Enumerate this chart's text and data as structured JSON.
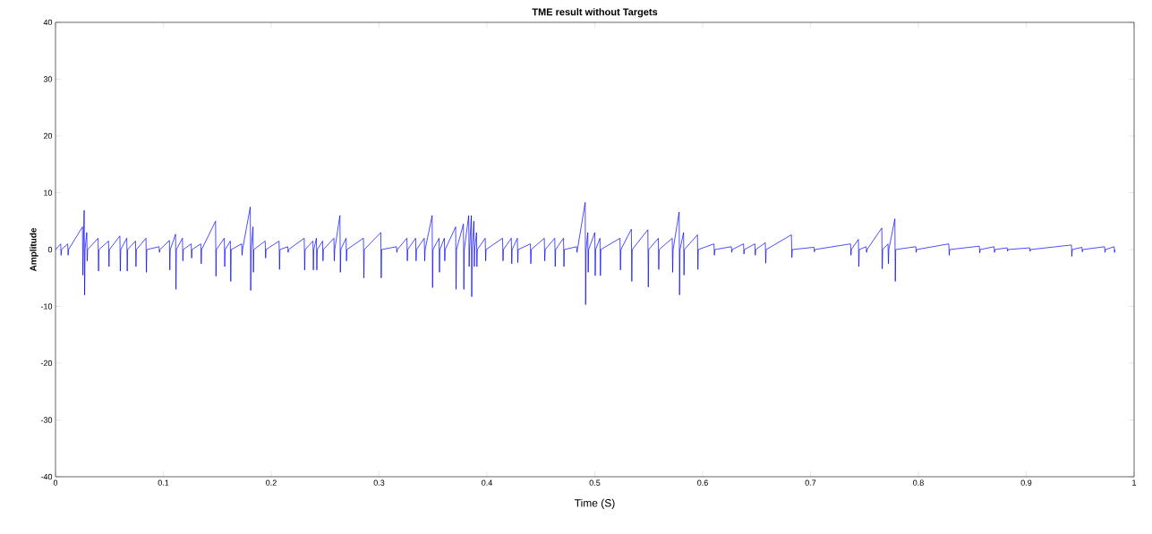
{
  "chart_data": {
    "type": "line",
    "title": "TME result without Targets",
    "xlabel": "Time (S)",
    "ylabel": "Amplitude",
    "xlim": [
      0,
      1
    ],
    "ylim": [
      -40,
      40
    ],
    "xticks": [
      0,
      0.1,
      0.2,
      0.3,
      0.4,
      0.5,
      0.6,
      0.7,
      0.8,
      0.9,
      1
    ],
    "yticks": [
      -40,
      -30,
      -20,
      -10,
      0,
      10,
      20,
      30,
      40
    ],
    "series": [
      {
        "color": "#0000ff",
        "x": [
          0,
          0.0048,
          0.0052,
          0.0056,
          0.0113,
          0.0117,
          0.0121,
          0.025,
          0.0254,
          0.0258,
          0.0266,
          0.027,
          0.0274,
          0.029,
          0.0294,
          0.0298,
          0.0395,
          0.0399,
          0.0403,
          0.0492,
          0.0496,
          0.05,
          0.0597,
          0.0601,
          0.0605,
          0.0661,
          0.0665,
          0.0669,
          0.0742,
          0.0746,
          0.075,
          0.0839,
          0.0843,
          0.0847,
          0.096,
          0.0964,
          0.0968,
          0.1056,
          0.106,
          0.1064,
          0.1113,
          0.1117,
          0.1121,
          0.1177,
          0.1181,
          0.1185,
          0.1258,
          0.1262,
          0.1266,
          0.1347,
          0.1351,
          0.1355,
          0.1484,
          0.1488,
          0.1492,
          0.1565,
          0.1569,
          0.1573,
          0.1621,
          0.1625,
          0.1629,
          0.1726,
          0.173,
          0.1734,
          0.1806,
          0.181,
          0.1814,
          0.1831,
          0.1835,
          0.1839,
          0.1944,
          0.1948,
          0.1952,
          0.2073,
          0.2077,
          0.2081,
          0.2153,
          0.2157,
          0.2161,
          0.2306,
          0.231,
          0.2314,
          0.2387,
          0.2391,
          0.2395,
          0.2419,
          0.2423,
          0.2427,
          0.2476,
          0.248,
          0.2484,
          0.2581,
          0.2585,
          0.2589,
          0.2637,
          0.2641,
          0.2645,
          0.2694,
          0.2698,
          0.2702,
          0.2855,
          0.2859,
          0.2863,
          0.3016,
          0.302,
          0.3024,
          0.3161,
          0.3165,
          0.3169,
          0.3258,
          0.3262,
          0.3266,
          0.3339,
          0.3343,
          0.3347,
          0.3419,
          0.3423,
          0.3427,
          0.3492,
          0.3496,
          0.35,
          0.3556,
          0.356,
          0.3564,
          0.3605,
          0.3609,
          0.3613,
          0.371,
          0.3714,
          0.3718,
          0.3782,
          0.3786,
          0.379,
          0.3831,
          0.3835,
          0.3839,
          0.3855,
          0.3859,
          0.3863,
          0.3879,
          0.3883,
          0.3887,
          0.3903,
          0.3907,
          0.3911,
          0.3984,
          0.3988,
          0.3992,
          0.4145,
          0.4149,
          0.4153,
          0.4226,
          0.423,
          0.4234,
          0.4282,
          0.4286,
          0.429,
          0.4403,
          0.4407,
          0.4411,
          0.4532,
          0.4536,
          0.454,
          0.4629,
          0.4633,
          0.4637,
          0.471,
          0.4714,
          0.4718,
          0.4831,
          0.4835,
          0.4839,
          0.4911,
          0.4915,
          0.4919,
          0.4935,
          0.4939,
          0.4943,
          0.5,
          0.5004,
          0.5008,
          0.5048,
          0.5052,
          0.5056,
          0.5234,
          0.5238,
          0.5242,
          0.5339,
          0.5343,
          0.5347,
          0.5492,
          0.5496,
          0.55,
          0.5589,
          0.5593,
          0.5597,
          0.5718,
          0.5722,
          0.5726,
          0.5782,
          0.5786,
          0.579,
          0.5823,
          0.5827,
          0.5831,
          0.5952,
          0.5956,
          0.596,
          0.6105,
          0.6109,
          0.6113,
          0.6266,
          0.627,
          0.6274,
          0.6379,
          0.6383,
          0.6387,
          0.6484,
          0.6488,
          0.6492,
          0.6581,
          0.6585,
          0.6589,
          0.6823,
          0.6827,
          0.6831,
          0.7032,
          0.7036,
          0.704,
          0.7371,
          0.7375,
          0.7379,
          0.7444,
          0.7448,
          0.7452,
          0.7516,
          0.752,
          0.7524,
          0.7661,
          0.7665,
          0.7669,
          0.7718,
          0.7722,
          0.7726,
          0.7782,
          0.7786,
          0.779,
          0.7976,
          0.798,
          0.7984,
          0.8282,
          0.8286,
          0.829,
          0.8565,
          0.8569,
          0.8573,
          0.8702,
          0.8706,
          0.871,
          0.8823,
          0.8827,
          0.8831,
          0.9032,
          0.9036,
          0.904,
          0.9419,
          0.9423,
          0.9427,
          0.9516,
          0.952,
          0.9524,
          0.9726,
          0.973,
          0.9734,
          0.9815,
          0.9819,
          0.9823
        ],
        "values": [
          0,
          1,
          -1,
          0,
          1,
          -1,
          0,
          4,
          -4.5,
          0,
          6.9,
          -8,
          0,
          3,
          -2,
          0,
          2,
          -3.8,
          0,
          1.5,
          -3,
          0,
          2.4,
          -3.8,
          0,
          2,
          -3.8,
          0,
          1.5,
          -3,
          0,
          2,
          -4,
          0,
          0.5,
          -0.5,
          0,
          1.6,
          -3.6,
          0,
          2.7,
          -7,
          0,
          2,
          -2,
          0,
          1,
          -1.5,
          0,
          1,
          -2.5,
          0,
          5,
          -4.7,
          0,
          2,
          -3,
          0,
          1.5,
          -5.6,
          0,
          1,
          -1,
          0,
          7.5,
          -7.2,
          0,
          4,
          -4,
          0,
          1.5,
          -1.5,
          0,
          1.5,
          -3.5,
          0,
          0.5,
          -0.5,
          0,
          2,
          -3.6,
          0,
          1.5,
          -3.6,
          0,
          2,
          -3.6,
          0,
          1.5,
          -2,
          0,
          2,
          -2,
          0,
          6,
          -4,
          0,
          2,
          -2,
          0,
          2,
          -5,
          0,
          3,
          -5,
          0,
          0.5,
          -0.5,
          0,
          2,
          -2,
          0,
          2,
          -2,
          0,
          2,
          -2,
          0,
          6,
          -6.7,
          0,
          2,
          -4,
          0,
          2,
          -2,
          0,
          4,
          -7,
          0,
          4.5,
          -7,
          0,
          6,
          -3,
          0,
          6,
          -8.3,
          0,
          5,
          -3,
          0,
          3,
          -3,
          0,
          2,
          -2,
          0,
          2,
          -2,
          0,
          2,
          -2.5,
          0,
          2,
          -2.3,
          0,
          1,
          -2.5,
          0,
          2,
          -2,
          0,
          2,
          -3,
          0,
          2,
          -3,
          0,
          0.5,
          -0.5,
          0,
          8.3,
          -9.7,
          0,
          3,
          -4,
          0,
          3,
          -4.6,
          0,
          2,
          -4.6,
          0,
          2,
          -3.6,
          0,
          3.6,
          -5.6,
          0,
          3.5,
          -6.6,
          0,
          2,
          -3.5,
          0,
          2,
          -4,
          0,
          6.6,
          -8,
          0,
          3,
          -4.5,
          0,
          2.6,
          -3.5,
          0,
          1,
          -1,
          0,
          0.5,
          -0.5,
          0,
          1,
          -0.8,
          0,
          1,
          -1,
          0,
          1.2,
          -2.4,
          0,
          2.6,
          -1.4,
          0,
          0.4,
          -0.4,
          0,
          1,
          -1,
          0,
          1.8,
          -3,
          0,
          0.5,
          -0.5,
          0,
          3.8,
          -3.4,
          0,
          1,
          -2.5,
          0,
          5.4,
          -5.6,
          0,
          0.5,
          -0.5,
          0,
          1,
          -1,
          0,
          0.6,
          -0.6,
          0,
          0.5,
          -0.5,
          0,
          0.3,
          -0.3,
          0,
          0.3,
          -0.3,
          0,
          0.8,
          -1.2,
          0,
          0.4,
          -0.4,
          0,
          0.5,
          -0.5,
          0,
          0.5,
          -0.5,
          0
        ]
      }
    ]
  }
}
